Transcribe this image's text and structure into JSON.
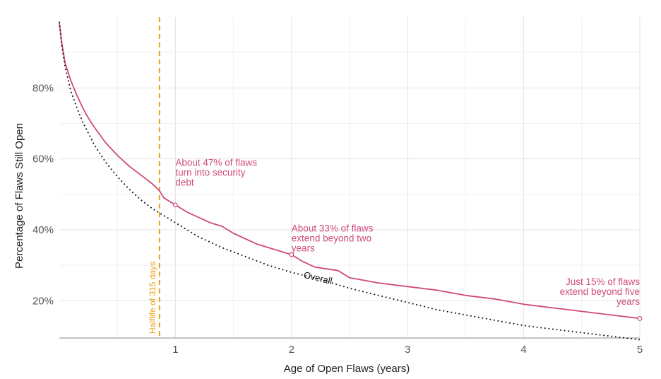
{
  "chart_data": {
    "type": "line",
    "title": "",
    "xlabel": "Age of Open Flaws (years)",
    "ylabel": "Percentage of Flaws Still Open",
    "xlim": [
      0,
      5
    ],
    "ylim": [
      0.095,
      1.0
    ],
    "x_ticks": [
      1,
      2,
      3,
      4,
      5
    ],
    "x_tick_labels": [
      "1",
      "2",
      "3",
      "4",
      "5"
    ],
    "y_ticks": [
      0.2,
      0.4,
      0.6,
      0.8
    ],
    "y_tick_labels": [
      "20%",
      "40%",
      "60%",
      "80%"
    ],
    "grid": true,
    "series": [
      {
        "name": "",
        "color": "#cf4a7e",
        "style": "solid",
        "x": [
          0,
          0.02,
          0.05,
          0.1,
          0.15,
          0.2,
          0.25,
          0.3,
          0.4,
          0.5,
          0.6,
          0.7,
          0.8,
          0.863,
          0.9,
          1.0,
          1.1,
          1.2,
          1.3,
          1.4,
          1.5,
          1.6,
          1.7,
          1.8,
          1.9,
          2.0,
          2.1,
          2.2,
          2.3,
          2.4,
          2.5,
          2.75,
          3.0,
          3.25,
          3.5,
          3.75,
          4.0,
          4.25,
          4.5,
          4.75,
          5.0
        ],
        "y": [
          0.985,
          0.93,
          0.87,
          0.82,
          0.78,
          0.745,
          0.715,
          0.69,
          0.645,
          0.61,
          0.58,
          0.555,
          0.53,
          0.51,
          0.49,
          0.47,
          0.45,
          0.435,
          0.42,
          0.41,
          0.39,
          0.375,
          0.36,
          0.35,
          0.34,
          0.33,
          0.31,
          0.295,
          0.29,
          0.285,
          0.265,
          0.25,
          0.24,
          0.23,
          0.215,
          0.205,
          0.19,
          0.18,
          0.17,
          0.16,
          0.15
        ]
      },
      {
        "name": "Overall",
        "color": "#111111",
        "style": "dotted",
        "x": [
          0,
          0.02,
          0.05,
          0.1,
          0.15,
          0.2,
          0.3,
          0.4,
          0.5,
          0.6,
          0.7,
          0.8,
          0.9,
          1.0,
          1.2,
          1.4,
          1.6,
          1.8,
          2.0,
          2.25,
          2.5,
          2.75,
          3.0,
          3.25,
          3.5,
          3.75,
          4.0,
          4.25,
          4.5,
          4.75,
          5.0
        ],
        "y": [
          0.985,
          0.92,
          0.86,
          0.79,
          0.745,
          0.705,
          0.64,
          0.59,
          0.55,
          0.515,
          0.485,
          0.46,
          0.44,
          0.42,
          0.38,
          0.35,
          0.325,
          0.3,
          0.28,
          0.26,
          0.235,
          0.215,
          0.195,
          0.175,
          0.16,
          0.145,
          0.13,
          0.12,
          0.11,
          0.1,
          0.09
        ]
      }
    ],
    "highlight_points": [
      {
        "x": 1,
        "y": 0.47
      },
      {
        "x": 2,
        "y": 0.33
      },
      {
        "x": 5,
        "y": 0.15
      }
    ],
    "halflife": {
      "x": 0.863,
      "label": "Halflife of 315 days",
      "color": "#e8a317"
    },
    "overall_label": {
      "text": "Overall",
      "x": 2.1,
      "y": 0.265
    },
    "annotations": [
      {
        "lines": [
          "About 47% of flaws",
          "turn into security",
          "debt"
        ],
        "x": 1.0,
        "y": 0.58,
        "anchor": "start"
      },
      {
        "lines": [
          "About 33% of flaws",
          "extend beyond two",
          "years"
        ],
        "x": 2.0,
        "y": 0.395,
        "anchor": "start"
      },
      {
        "lines": [
          "Just 15% of flaws",
          "extend beyond five",
          "years"
        ],
        "x": 5.0,
        "y": 0.245,
        "anchor": "end"
      }
    ]
  }
}
